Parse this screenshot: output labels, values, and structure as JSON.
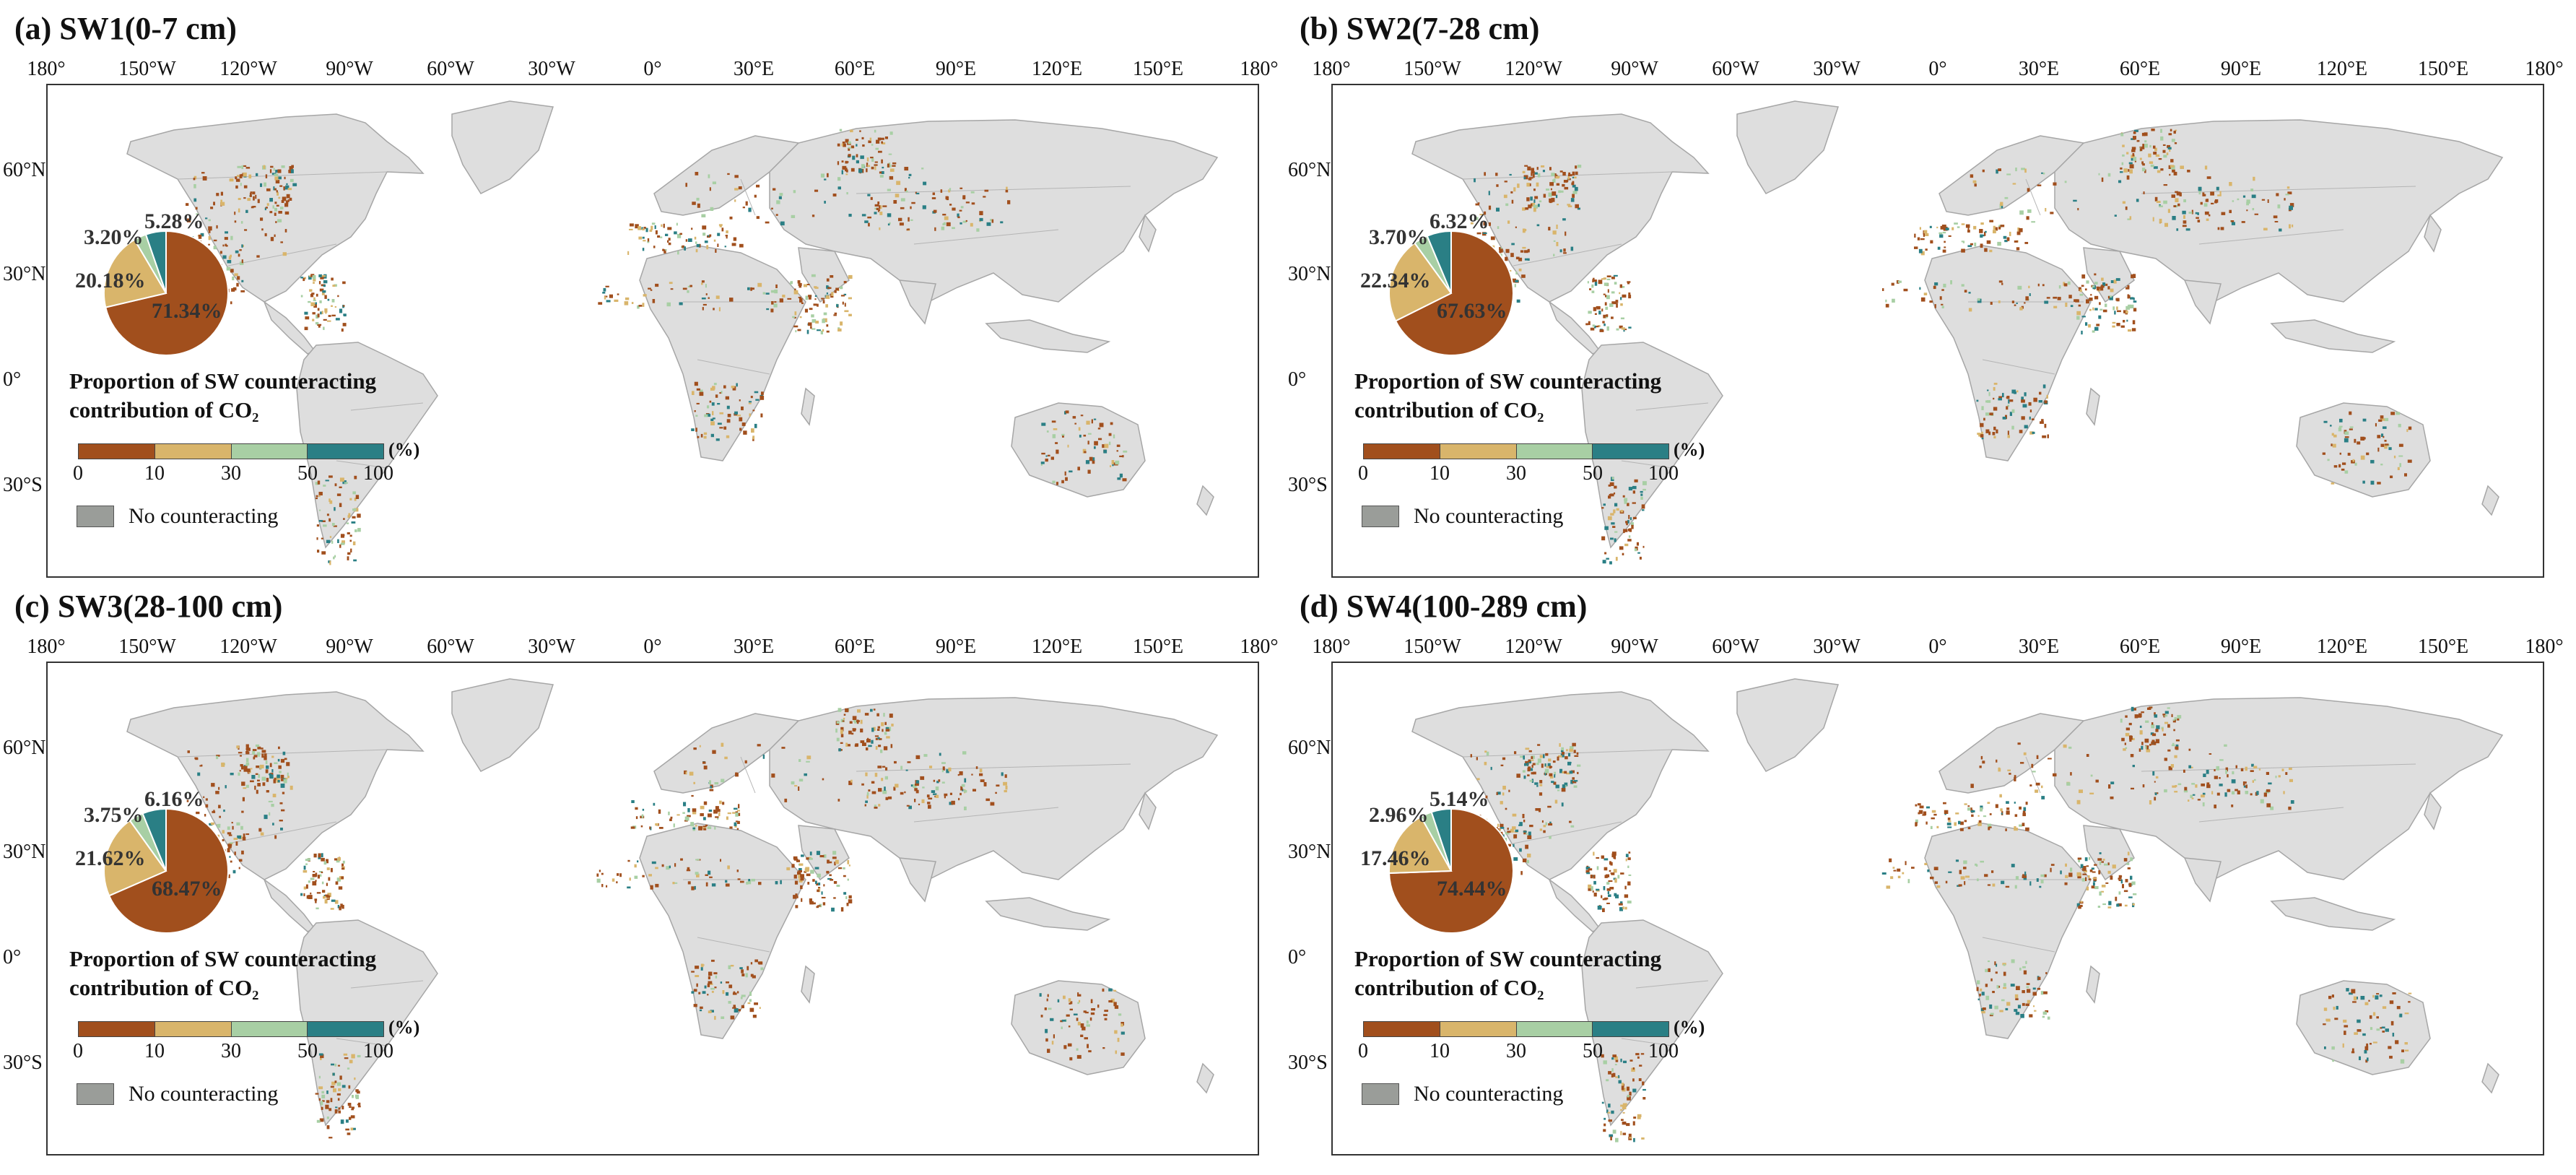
{
  "colors": {
    "land": "#dedede",
    "border": "#a6a6a6",
    "class1": "#a14f1d",
    "class2": "#d9b56b",
    "class3": "#a8cfa4",
    "class4": "#2a7f85",
    "no_counteracting": "#9a9d99"
  },
  "lon_labels": [
    "180°",
    "150°W",
    "120°W",
    "90°W",
    "60°W",
    "30°W",
    "0°",
    "30°E",
    "60°E",
    "90°E",
    "120°E",
    "150°E",
    "180°"
  ],
  "lat_labels": [
    "60°N",
    "30°N",
    "0°",
    "30°S"
  ],
  "legend": {
    "title_line1": "Proportion of SW counteracting",
    "title_line2": "contribution of CO₂",
    "unit": "(%)",
    "ticks": [
      "0",
      "10",
      "30",
      "50",
      "100"
    ],
    "no_counteracting": "No counteracting"
  },
  "panels": [
    {
      "title": "(a) SW1(0-7 cm)",
      "pie": {
        "values": [
          71.34,
          20.18,
          3.2,
          5.28
        ],
        "labels": [
          "71.34%",
          "20.18%",
          "3.20%",
          "5.28%"
        ]
      }
    },
    {
      "title": "(b) SW2(7-28 cm)",
      "pie": {
        "values": [
          67.63,
          22.34,
          3.7,
          6.32
        ],
        "labels": [
          "67.63%",
          "22.34%",
          "3.70%",
          "6.32%"
        ]
      }
    },
    {
      "title": "(c) SW3(28-100 cm)",
      "pie": {
        "values": [
          68.47,
          21.62,
          3.75,
          6.16
        ],
        "labels": [
          "68.47%",
          "21.62%",
          "3.75%",
          "6.16%"
        ]
      }
    },
    {
      "title": "(d) SW4(100-289 cm)",
      "pie": {
        "values": [
          74.44,
          17.46,
          2.96,
          5.14
        ],
        "labels": [
          "74.44%",
          "17.46%",
          "2.96%",
          "5.14%"
        ]
      }
    }
  ]
}
